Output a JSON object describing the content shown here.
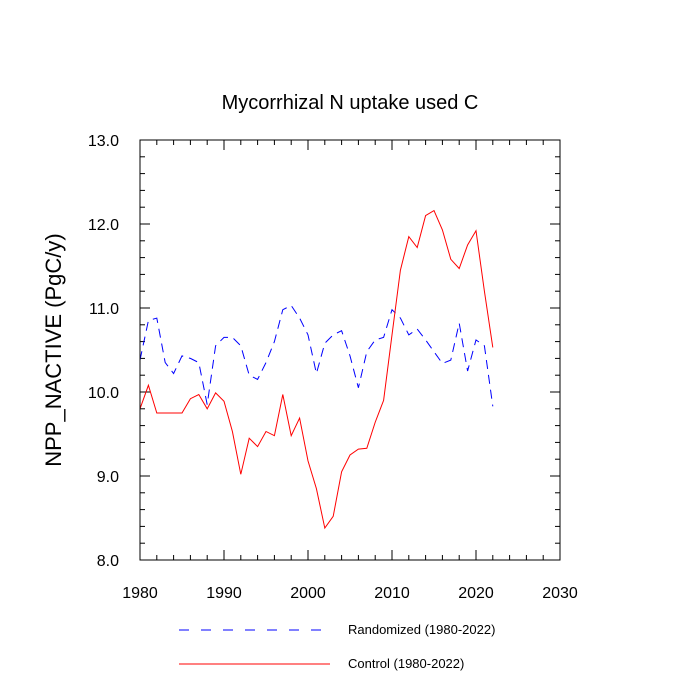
{
  "chart_data": {
    "type": "line",
    "title": "Mycorrhizal N uptake used C",
    "xlabel": "",
    "ylabel": "NPP_NACTIVE  (PgC/y)",
    "xlim": [
      1980,
      2030
    ],
    "ylim": [
      8.0,
      13.0
    ],
    "x_ticks": [
      "1980",
      "1990",
      "2000",
      "2010",
      "2020",
      "2030"
    ],
    "y_ticks": [
      "8.0",
      "9.0",
      "10.0",
      "11.0",
      "12.0",
      "13.0"
    ],
    "grid": false,
    "legend_position": "bottom",
    "x": [
      1980,
      1981,
      1982,
      1983,
      1984,
      1985,
      1986,
      1987,
      1988,
      1989,
      1990,
      1991,
      1992,
      1993,
      1994,
      1995,
      1996,
      1997,
      1998,
      1999,
      2000,
      2001,
      2002,
      2003,
      2004,
      2005,
      2006,
      2007,
      2008,
      2009,
      2010,
      2011,
      2012,
      2013,
      2014,
      2015,
      2016,
      2017,
      2018,
      2019,
      2020,
      2021,
      2022
    ],
    "series": [
      {
        "name": "Randomized (1980-2022)",
        "color": "#0000ff",
        "dash": "dashed",
        "values": [
          10.38,
          10.85,
          10.88,
          10.35,
          10.22,
          10.43,
          10.4,
          10.35,
          9.85,
          10.55,
          10.65,
          10.65,
          10.55,
          10.2,
          10.15,
          10.35,
          10.6,
          10.98,
          11.03,
          10.88,
          10.68,
          10.22,
          10.58,
          10.68,
          10.73,
          10.43,
          10.05,
          10.48,
          10.62,
          10.65,
          10.98,
          10.88,
          10.68,
          10.75,
          10.62,
          10.48,
          10.34,
          10.38,
          10.82,
          10.25,
          10.62,
          10.55,
          9.83
        ]
      },
      {
        "name": "Control (1980-2022)",
        "color": "#ff0000",
        "dash": "solid",
        "values": [
          9.8,
          10.08,
          9.75,
          9.75,
          9.75,
          9.75,
          9.92,
          9.97,
          9.8,
          9.99,
          9.89,
          9.53,
          9.02,
          9.45,
          9.35,
          9.53,
          9.48,
          9.97,
          9.48,
          9.69,
          9.18,
          8.85,
          8.38,
          8.52,
          9.05,
          9.25,
          9.32,
          9.33,
          9.64,
          9.9,
          10.68,
          11.45,
          11.85,
          11.72,
          12.1,
          12.16,
          11.93,
          11.58,
          11.47,
          11.75,
          11.92,
          11.2,
          10.53
        ]
      }
    ]
  }
}
